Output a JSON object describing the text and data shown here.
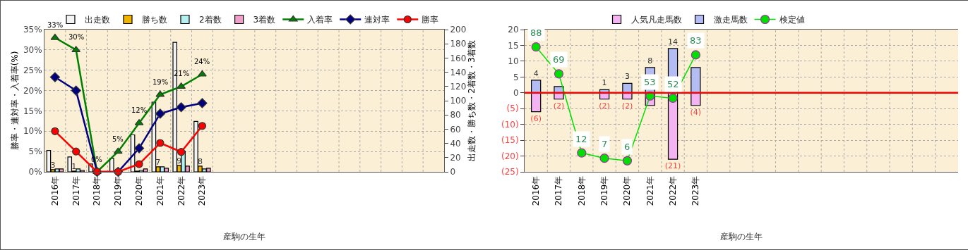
{
  "chart_data": [
    {
      "type": "bar",
      "xlabel": "産駒の生年",
      "ylabel": "勝率・連対率・入着率(%)",
      "y2label": "出走数・勝ち数・2着数・3着数",
      "categories": [
        "2016年",
        "2017年",
        "2018年",
        "2019年",
        "2020年",
        "2021年",
        "2022年",
        "2023年",
        null,
        null,
        null,
        null,
        null,
        null,
        null,
        null,
        null,
        null,
        null
      ],
      "ylim": [
        0,
        35
      ],
      "yticks": [
        {
          "value": 0,
          "label": "0%"
        },
        {
          "value": 5,
          "label": "5%"
        },
        {
          "value": 10,
          "label": "10%"
        },
        {
          "value": 15,
          "label": "15%"
        },
        {
          "value": 20,
          "label": "20%"
        },
        {
          "value": 25,
          "label": "25%"
        },
        {
          "value": 30,
          "label": "30%"
        },
        {
          "value": 35,
          "label": "35%"
        }
      ],
      "y2lim": [
        0,
        200
      ],
      "y2ticks": [
        0,
        20,
        40,
        60,
        80,
        100,
        120,
        140,
        160,
        180,
        200
      ],
      "grid": true,
      "legend": "top",
      "series": [
        {
          "name": "出走数",
          "axis": "y2",
          "color": "#f4f4f4",
          "values": [
            30,
            21,
            11,
            19,
            52,
            98,
            182,
            71,
            null,
            null,
            null,
            null,
            null,
            null,
            null,
            null,
            null,
            null,
            null
          ]
        },
        {
          "name": "勝ち数",
          "axis": "y2",
          "color": "#f0b400",
          "values": [
            3,
            1,
            0,
            0,
            1,
            7,
            9,
            8,
            null,
            null,
            null,
            null,
            null,
            null,
            null,
            null,
            null,
            null,
            null
          ],
          "value_labels": [
            "3",
            "1",
            null,
            null,
            null,
            "7",
            "9",
            "8",
            null,
            null,
            null,
            null,
            null,
            null,
            null,
            null,
            null,
            null,
            null
          ]
        },
        {
          "name": "2着数",
          "axis": "y2",
          "color": "#b4f0f0",
          "values": [
            4,
            4,
            0,
            0,
            2,
            7,
            29,
            4,
            null,
            null,
            null,
            null,
            null,
            null,
            null,
            null,
            null,
            null,
            null
          ]
        },
        {
          "name": "3着数",
          "axis": "y2",
          "color": "#f0a0c8",
          "values": [
            4,
            2,
            0,
            0,
            4,
            5,
            8,
            5,
            null,
            null,
            null,
            null,
            null,
            null,
            null,
            null,
            null,
            null,
            null
          ]
        },
        {
          "name": "入着率",
          "type": "line",
          "color": "#008000",
          "marker": "triangle",
          "values": [
            33,
            30,
            0,
            5,
            12,
            19,
            21,
            24,
            null,
            null,
            null,
            null,
            null,
            null,
            null,
            null,
            null,
            null,
            null
          ],
          "value_labels": [
            "33%",
            "30%",
            "0%",
            "5%",
            "12%",
            "19%",
            "21%",
            "24%",
            null,
            null,
            null,
            null,
            null,
            null,
            null,
            null,
            null,
            null,
            null
          ]
        },
        {
          "name": "連対率",
          "type": "line",
          "color": "#000080",
          "marker": "diamond",
          "values": [
            23.3,
            20,
            0,
            0,
            5.8,
            14.3,
            15.9,
            16.9,
            null,
            null,
            null,
            null,
            null,
            null,
            null,
            null,
            null,
            null,
            null
          ]
        },
        {
          "name": "勝率",
          "type": "line",
          "color": "#ff0000",
          "marker": "circle",
          "values": [
            10,
            5,
            0,
            0,
            1.9,
            7.1,
            4.9,
            11.3,
            null,
            null,
            null,
            null,
            null,
            null,
            null,
            null,
            null,
            null,
            null
          ]
        }
      ]
    },
    {
      "type": "bar",
      "xlabel": "産駒の生年",
      "stacked": true,
      "categories": [
        "2016年",
        "2017年",
        "2018年",
        "2019年",
        "2020年",
        "2021年",
        "2022年",
        "2023年",
        null,
        null,
        null,
        null,
        null,
        null,
        null,
        null,
        null,
        null,
        null
      ],
      "ylim": [
        -25,
        20
      ],
      "yticks": [
        {
          "value": -25,
          "label": "(25)"
        },
        {
          "value": -20,
          "label": "(20)"
        },
        {
          "value": -15,
          "label": "(15)"
        },
        {
          "value": -10,
          "label": "(10)"
        },
        {
          "value": -5,
          "label": "(5)"
        },
        0,
        5,
        10,
        15,
        20
      ],
      "grid": true,
      "legend": "top",
      "ref_lines": [
        {
          "axis": "y",
          "value": 0,
          "color": "#ff0000"
        }
      ],
      "series": [
        {
          "name": "人気凡走馬数",
          "color": "#f4b4f4",
          "values": [
            -6,
            -2,
            0,
            -2,
            -2,
            -4,
            -21,
            -4,
            null,
            null,
            null,
            null,
            null,
            null,
            null,
            null,
            null,
            null,
            null
          ],
          "value_labels": [
            "(6)",
            "(2)",
            null,
            "(2)",
            "(2)",
            null,
            "(21)",
            "(4)",
            null,
            null,
            null,
            null,
            null,
            null,
            null,
            null,
            null,
            null,
            null
          ]
        },
        {
          "name": "激走馬数",
          "color": "#b4bcf4",
          "values": [
            4,
            2,
            0,
            1,
            3,
            8,
            14,
            8,
            null,
            null,
            null,
            null,
            null,
            null,
            null,
            null,
            null,
            null,
            null
          ],
          "value_labels": [
            "4",
            null,
            null,
            "1",
            "3",
            "8",
            "14",
            null,
            null,
            null,
            null,
            null,
            null,
            null,
            null,
            null,
            null,
            null,
            null
          ]
        },
        {
          "name": "検定値",
          "type": "line",
          "color": "#00e000",
          "marker": "circle",
          "values": [
            14.5,
            6,
            -19,
            -20.7,
            -21.5,
            -1,
            -1.7,
            12,
            null,
            null,
            null,
            null,
            null,
            null,
            null,
            null,
            null,
            null,
            null
          ]
        }
      ],
      "annotations": [
        {
          "text": "88",
          "x": "2016年",
          "y": 14.5
        },
        {
          "text": "69",
          "x": "2017年",
          "y": 6
        },
        {
          "text": "12",
          "x": "2018年",
          "y": -19
        },
        {
          "text": "7",
          "x": "2019年",
          "y": -20.7
        },
        {
          "text": "6",
          "x": "2020年",
          "y": -21.5
        },
        {
          "text": "53",
          "x": "2021年",
          "y": -1
        },
        {
          "text": "52",
          "x": "2022年",
          "y": -1.7
        },
        {
          "text": "83",
          "x": "2023年",
          "y": 12
        }
      ]
    }
  ]
}
